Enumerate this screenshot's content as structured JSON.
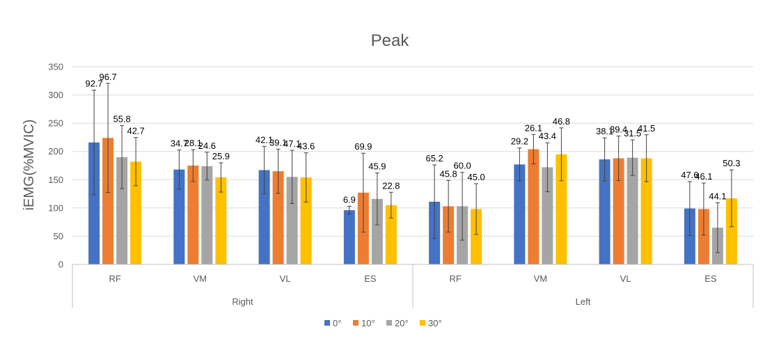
{
  "chart_data": {
    "type": "bar",
    "title": "Peak",
    "ylabel": "iEMG(%MVIC)",
    "ylim": [
      0,
      350
    ],
    "yticks": [
      0,
      50,
      100,
      150,
      200,
      250,
      300,
      350
    ],
    "grid": true,
    "legend_position": "bottom",
    "groups": [
      {
        "name": "Right",
        "categories": [
          "RF",
          "VM",
          "VL",
          "ES"
        ]
      },
      {
        "name": "Left",
        "categories": [
          "RF",
          "VM",
          "VL",
          "ES"
        ]
      }
    ],
    "series": [
      {
        "name": "0°",
        "color": "#4472C4",
        "values": [
          216,
          168,
          167,
          96,
          111,
          177,
          186,
          99
        ],
        "errors": [
          92.7,
          34.7,
          42.1,
          6.9,
          65.2,
          29.2,
          38.1,
          47.6
        ],
        "labels": [
          "92.7",
          "34.7",
          "42.1",
          "6.9",
          "65.2",
          "29.2",
          "38.1",
          "47.6"
        ]
      },
      {
        "name": "10°",
        "color": "#ED7D31",
        "values": [
          224,
          175,
          165,
          127,
          103,
          204,
          188,
          98
        ],
        "errors": [
          96.7,
          28.1,
          39.1,
          69.9,
          45.8,
          26.1,
          39.4,
          46.1
        ],
        "labels": [
          "96.7",
          "28.1",
          "39.1",
          "69.9",
          "45.8",
          "26.1",
          "39.4",
          "46.1"
        ]
      },
      {
        "name": "20°",
        "color": "#A5A5A5",
        "values": [
          190,
          174,
          155,
          116,
          103,
          172,
          189,
          65
        ],
        "errors": [
          55.8,
          24.6,
          47.1,
          45.9,
          60.0,
          43.4,
          31.5,
          44.1
        ],
        "labels": [
          "55.8",
          "24.6",
          "47.1",
          "45.9",
          "60.0",
          "43.4",
          "31.5",
          "44.1"
        ]
      },
      {
        "name": "30°",
        "color": "#FFC000",
        "values": [
          182,
          154,
          154,
          105,
          98,
          195,
          188,
          117
        ],
        "errors": [
          42.7,
          25.9,
          43.6,
          22.8,
          45.0,
          46.8,
          41.5,
          50.3
        ],
        "labels": [
          "42.7",
          "25.9",
          "43.6",
          "22.8",
          "45.0",
          "46.8",
          "41.5",
          "50.3"
        ]
      }
    ]
  }
}
